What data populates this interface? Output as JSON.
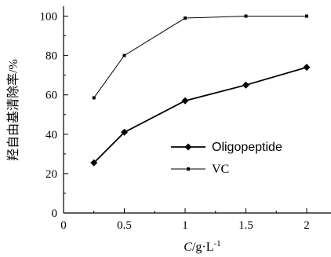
{
  "chart_data": {
    "type": "line",
    "xlabel_var": "C",
    "xlabel_unit": "/g·L",
    "xlabel_sup": "-1",
    "ylabel": "羟自由基清除率/%",
    "xlim": [
      0,
      2.2
    ],
    "ylim": [
      0,
      105
    ],
    "x_ticks": [
      0,
      0.5,
      1,
      1.5,
      2
    ],
    "x_tick_labels": [
      "0",
      "0.5",
      "1",
      "1.5",
      "2"
    ],
    "y_ticks": [
      0,
      20,
      40,
      60,
      80,
      100
    ],
    "y_tick_labels": [
      "0",
      "20",
      "40",
      "60",
      "80",
      "100"
    ],
    "x": [
      0.25,
      0.5,
      1,
      1.5,
      2
    ],
    "series": [
      {
        "name": "Oligopeptide",
        "values": [
          25.5,
          41,
          57,
          65,
          74
        ],
        "marker": "diamond",
        "color": "#000000"
      },
      {
        "name": "VC",
        "values": [
          58.5,
          80,
          99,
          100,
          100
        ],
        "marker": "small-dot",
        "color": "#000000"
      }
    ],
    "legend_position": "bottom-right",
    "grid": false
  }
}
